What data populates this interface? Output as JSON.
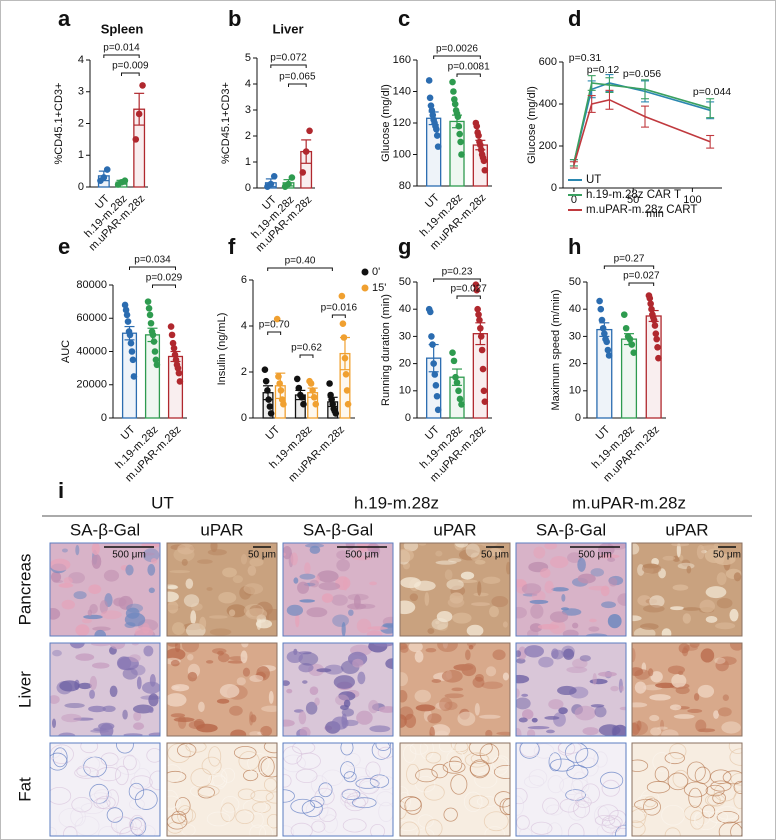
{
  "chart_data": [
    {
      "type": "bar",
      "panel": "a",
      "title": "Spleen",
      "ylabel": "%CD45.1+CD3+",
      "categories": [
        "UT",
        "h.19-m.28z",
        "m.uPAR-m.28z"
      ],
      "colors": [
        "#2b6cb0",
        "#2e9b4f",
        "#b0282e"
      ],
      "values": [
        0.35,
        0.15,
        2.45
      ],
      "errors": [
        0.15,
        0.06,
        0.5
      ],
      "points": [
        [
          0.2,
          0.3,
          0.55
        ],
        [
          0.08,
          0.15,
          0.2
        ],
        [
          1.5,
          2.3,
          3.2
        ]
      ],
      "ylim": [
        0,
        4
      ],
      "yticks": [
        0,
        1,
        2,
        3,
        4
      ],
      "p_values": [
        "p=0.014",
        "p=0.009"
      ]
    },
    {
      "type": "bar",
      "panel": "b",
      "title": "Liver",
      "ylabel": "%CD45.1+CD3+",
      "categories": [
        "UT",
        "h.19-m.28z",
        "m.uPAR-m.28z"
      ],
      "colors": [
        "#2b6cb0",
        "#2e9b4f",
        "#b0282e"
      ],
      "values": [
        0.2,
        0.2,
        1.4
      ],
      "errors": [
        0.15,
        0.12,
        0.45
      ],
      "points": [
        [
          0.05,
          0.15,
          0.45
        ],
        [
          0.05,
          0.15,
          0.4
        ],
        [
          0.6,
          1.4,
          2.2
        ]
      ],
      "ylim": [
        0,
        5
      ],
      "yticks": [
        0,
        1,
        2,
        3,
        4,
        5
      ],
      "p_values": [
        "p=0.072",
        "p=0.065"
      ]
    },
    {
      "type": "bar",
      "panel": "c",
      "ylabel": "Glucose (mg/dl)",
      "categories": [
        "UT",
        "h.19-m.28z",
        "m.uPAR-m.28z"
      ],
      "colors": [
        "#2b6cb0",
        "#2e9b4f",
        "#b0282e"
      ],
      "values": [
        123,
        121,
        106
      ],
      "errors": [
        4,
        4,
        3
      ],
      "points": [
        [
          147,
          136,
          131,
          128,
          125,
          122,
          120,
          118,
          116,
          112,
          105
        ],
        [
          146,
          140,
          135,
          132,
          128,
          126,
          124,
          118,
          113,
          108,
          100
        ],
        [
          120,
          118,
          114,
          112,
          108,
          106,
          103,
          100,
          98,
          96,
          90
        ]
      ],
      "ylim": [
        80,
        160
      ],
      "yticks": [
        80,
        100,
        120,
        140,
        160
      ],
      "p_values": [
        "p=0.0026",
        "p=0.0081"
      ]
    },
    {
      "type": "line",
      "panel": "d",
      "ylabel": "Glucose (mg/dl)",
      "xlabel": "min",
      "x": [
        0,
        15,
        30,
        60,
        115
      ],
      "series": [
        {
          "name": "UT",
          "color": "#2a87b0",
          "values": [
            120,
            470,
            500,
            460,
            370
          ],
          "errors": [
            15,
            40,
            40,
            50,
            40
          ]
        },
        {
          "name": "h.19-m.28z CAR T",
          "color": "#3aa060",
          "values": [
            120,
            500,
            490,
            470,
            380
          ],
          "errors": [
            15,
            35,
            35,
            45,
            45
          ]
        },
        {
          "name": "m.uPAR-m.28z CART",
          "color": "#c0393e",
          "values": [
            110,
            400,
            420,
            340,
            220
          ],
          "errors": [
            15,
            40,
            45,
            50,
            30
          ]
        }
      ],
      "xlim": [
        -5,
        125
      ],
      "xticks": [
        0,
        50,
        100
      ],
      "ylim": [
        0,
        600
      ],
      "yticks": [
        0,
        200,
        400,
        600
      ],
      "p_values": [
        "p=0.31",
        "p=0.12",
        "p=0.056",
        "p=0.044"
      ]
    },
    {
      "type": "bar",
      "panel": "e",
      "ylabel": "AUC",
      "categories": [
        "UT",
        "h.19-m.28z",
        "m.uPAR-m.28z"
      ],
      "colors": [
        "#2b6cb0",
        "#2e9b4f",
        "#b0282e"
      ],
      "values": [
        51000,
        50000,
        37000
      ],
      "errors": [
        4000,
        4000,
        3000
      ],
      "points": [
        [
          68000,
          65000,
          62000,
          58000,
          52000,
          50000,
          45000,
          40000,
          35000,
          25000
        ],
        [
          70000,
          66000,
          62000,
          57000,
          52000,
          50000,
          46000,
          40000,
          35000,
          32000
        ],
        [
          55000,
          50000,
          45000,
          42000,
          38000,
          35000,
          32000,
          30000,
          27000,
          22000
        ]
      ],
      "ylim": [
        0,
        80000
      ],
      "yticks": [
        0,
        20000,
        40000,
        60000,
        80000
      ],
      "p_values": [
        "p=0.034",
        "p=0.029"
      ]
    },
    {
      "type": "bar",
      "panel": "f",
      "ylabel": "Insulin (ng/mL)",
      "categories": [
        "UT",
        "h.19-m.28z",
        "m.uPAR-m.28z"
      ],
      "series": [
        {
          "name": "0'",
          "color": "#111111",
          "values": [
            1.1,
            1.0,
            0.7
          ],
          "errors": [
            0.3,
            0.2,
            0.2
          ],
          "points": [
            [
              2.1,
              1.6,
              1.2,
              0.8,
              0.5,
              0.2
            ],
            [
              1.7,
              1.3,
              1.0,
              0.9,
              0.6
            ],
            [
              1.5,
              1.0,
              0.8,
              0.6,
              0.4,
              0.3,
              0.2
            ]
          ]
        },
        {
          "name": "15'",
          "color": "#f0a030",
          "values": [
            1.4,
            1.1,
            2.8
          ],
          "errors": [
            0.55,
            0.2,
            0.7
          ],
          "points": [
            [
              4.3,
              1.8,
              1.5,
              1.2,
              0.8,
              0.6
            ],
            [
              1.6,
              1.5,
              1.2,
              0.9,
              0.6
            ],
            [
              5.3,
              4.1,
              3.5,
              2.6,
              1.9,
              1.2,
              0.6
            ]
          ]
        }
      ],
      "ylim": [
        0,
        6
      ],
      "yticks": [
        0,
        2,
        4,
        6
      ],
      "p_values": [
        "p=0.40",
        "p=0.70",
        "p=0.62",
        "p=0.016"
      ]
    },
    {
      "type": "bar",
      "panel": "g",
      "ylabel": "Running duration (min)",
      "categories": [
        "UT",
        "h.19-m.28z",
        "m.uPAR-m.28z"
      ],
      "colors": [
        "#2b6cb0",
        "#2e9b4f",
        "#b0282e"
      ],
      "values": [
        22,
        15,
        31
      ],
      "errors": [
        5,
        3,
        4
      ],
      "points": [
        [
          40,
          39,
          30,
          27,
          20,
          16,
          12,
          8,
          3
        ],
        [
          24,
          21,
          15,
          13,
          10,
          7,
          5
        ],
        [
          49,
          47,
          40,
          38,
          36,
          33,
          30,
          25,
          18,
          10,
          6
        ]
      ],
      "ylim": [
        0,
        50
      ],
      "yticks": [
        0,
        10,
        20,
        30,
        40,
        50
      ],
      "p_values": [
        "p=0.23",
        "p=0.027"
      ]
    },
    {
      "type": "bar",
      "panel": "h",
      "ylabel": "Maximum speed (m/min)",
      "categories": [
        "UT",
        "h.19-m.28z",
        "m.uPAR-m.28z"
      ],
      "colors": [
        "#2b6cb0",
        "#2e9b4f",
        "#b0282e"
      ],
      "values": [
        32.5,
        29,
        37.5
      ],
      "errors": [
        2.5,
        2,
        2
      ],
      "points": [
        [
          43,
          40,
          36,
          33,
          31,
          29,
          28,
          25,
          23
        ],
        [
          38,
          33,
          30,
          29,
          27,
          24
        ],
        [
          45,
          44,
          42,
          40,
          38,
          37,
          36,
          34,
          31,
          29,
          26,
          22
        ]
      ],
      "ylim": [
        0,
        50
      ],
      "yticks": [
        0,
        10,
        20,
        30,
        40,
        50
      ],
      "p_values": [
        "p=0.27",
        "p=0.027"
      ]
    }
  ],
  "panel_i": {
    "panel": "i",
    "groups": [
      "UT",
      "h.19-m.28z",
      "m.uPAR-m.28z"
    ],
    "columns": [
      "SA-β-Gal",
      "uPAR"
    ],
    "rows": [
      "Pancreas",
      "Liver",
      "Fat"
    ],
    "scale_bars": [
      "500 μm",
      "50 μm"
    ]
  }
}
